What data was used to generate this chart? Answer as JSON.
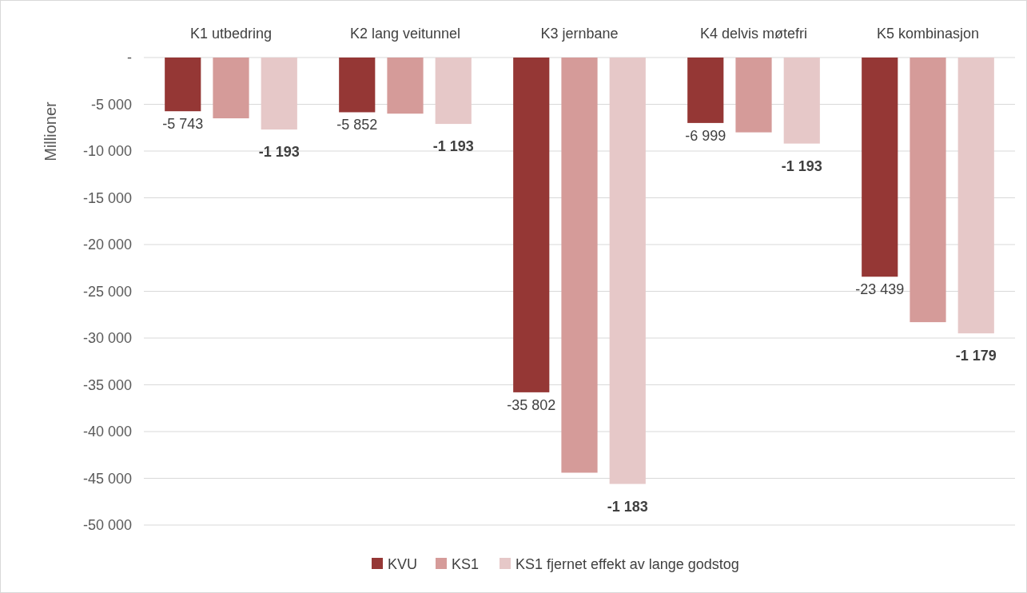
{
  "chart_data": {
    "type": "bar",
    "ylabel": "Millioner",
    "categories": [
      "K1 utbedring",
      "K2 lang veitunnel",
      "K3 jernbane",
      "K4 delvis møtefri",
      "K5 kombinasjon"
    ],
    "series": [
      {
        "name": "KVU",
        "color": "#953735",
        "values": [
          -5743,
          -5852,
          -35802,
          -6999,
          -23439
        ],
        "value_labels": [
          "-5 743",
          "-5 852",
          "-35 802",
          "-6 999",
          "-23 439"
        ]
      },
      {
        "name": "KS1",
        "color": "#d59b99",
        "values": [
          -6500,
          -6000,
          -44400,
          -8000,
          -28300
        ]
      },
      {
        "name": "KS1 fjernet effekt av lange godstog",
        "color": "#e6c8c8",
        "values": [
          -7700,
          -7100,
          -45600,
          -9200,
          -29500
        ]
      }
    ],
    "annotations": [
      "-1 193",
      "-1 193",
      "-1 183",
      "-1 193",
      "-1 179"
    ],
    "ylim": [
      -50000,
      0
    ],
    "yticks": [
      {
        "value": 0,
        "label": "-"
      },
      {
        "value": -5000,
        "label": "-5 000"
      },
      {
        "value": -10000,
        "label": "-10 000"
      },
      {
        "value": -15000,
        "label": "-15 000"
      },
      {
        "value": -20000,
        "label": "-20 000"
      },
      {
        "value": -25000,
        "label": "-25 000"
      },
      {
        "value": -30000,
        "label": "-30 000"
      },
      {
        "value": -35000,
        "label": "-35 000"
      },
      {
        "value": -40000,
        "label": "-40 000"
      },
      {
        "value": -45000,
        "label": "-45 000"
      },
      {
        "value": -50000,
        "label": "-50 000"
      }
    ],
    "grid": "y",
    "legend": "bottom"
  }
}
